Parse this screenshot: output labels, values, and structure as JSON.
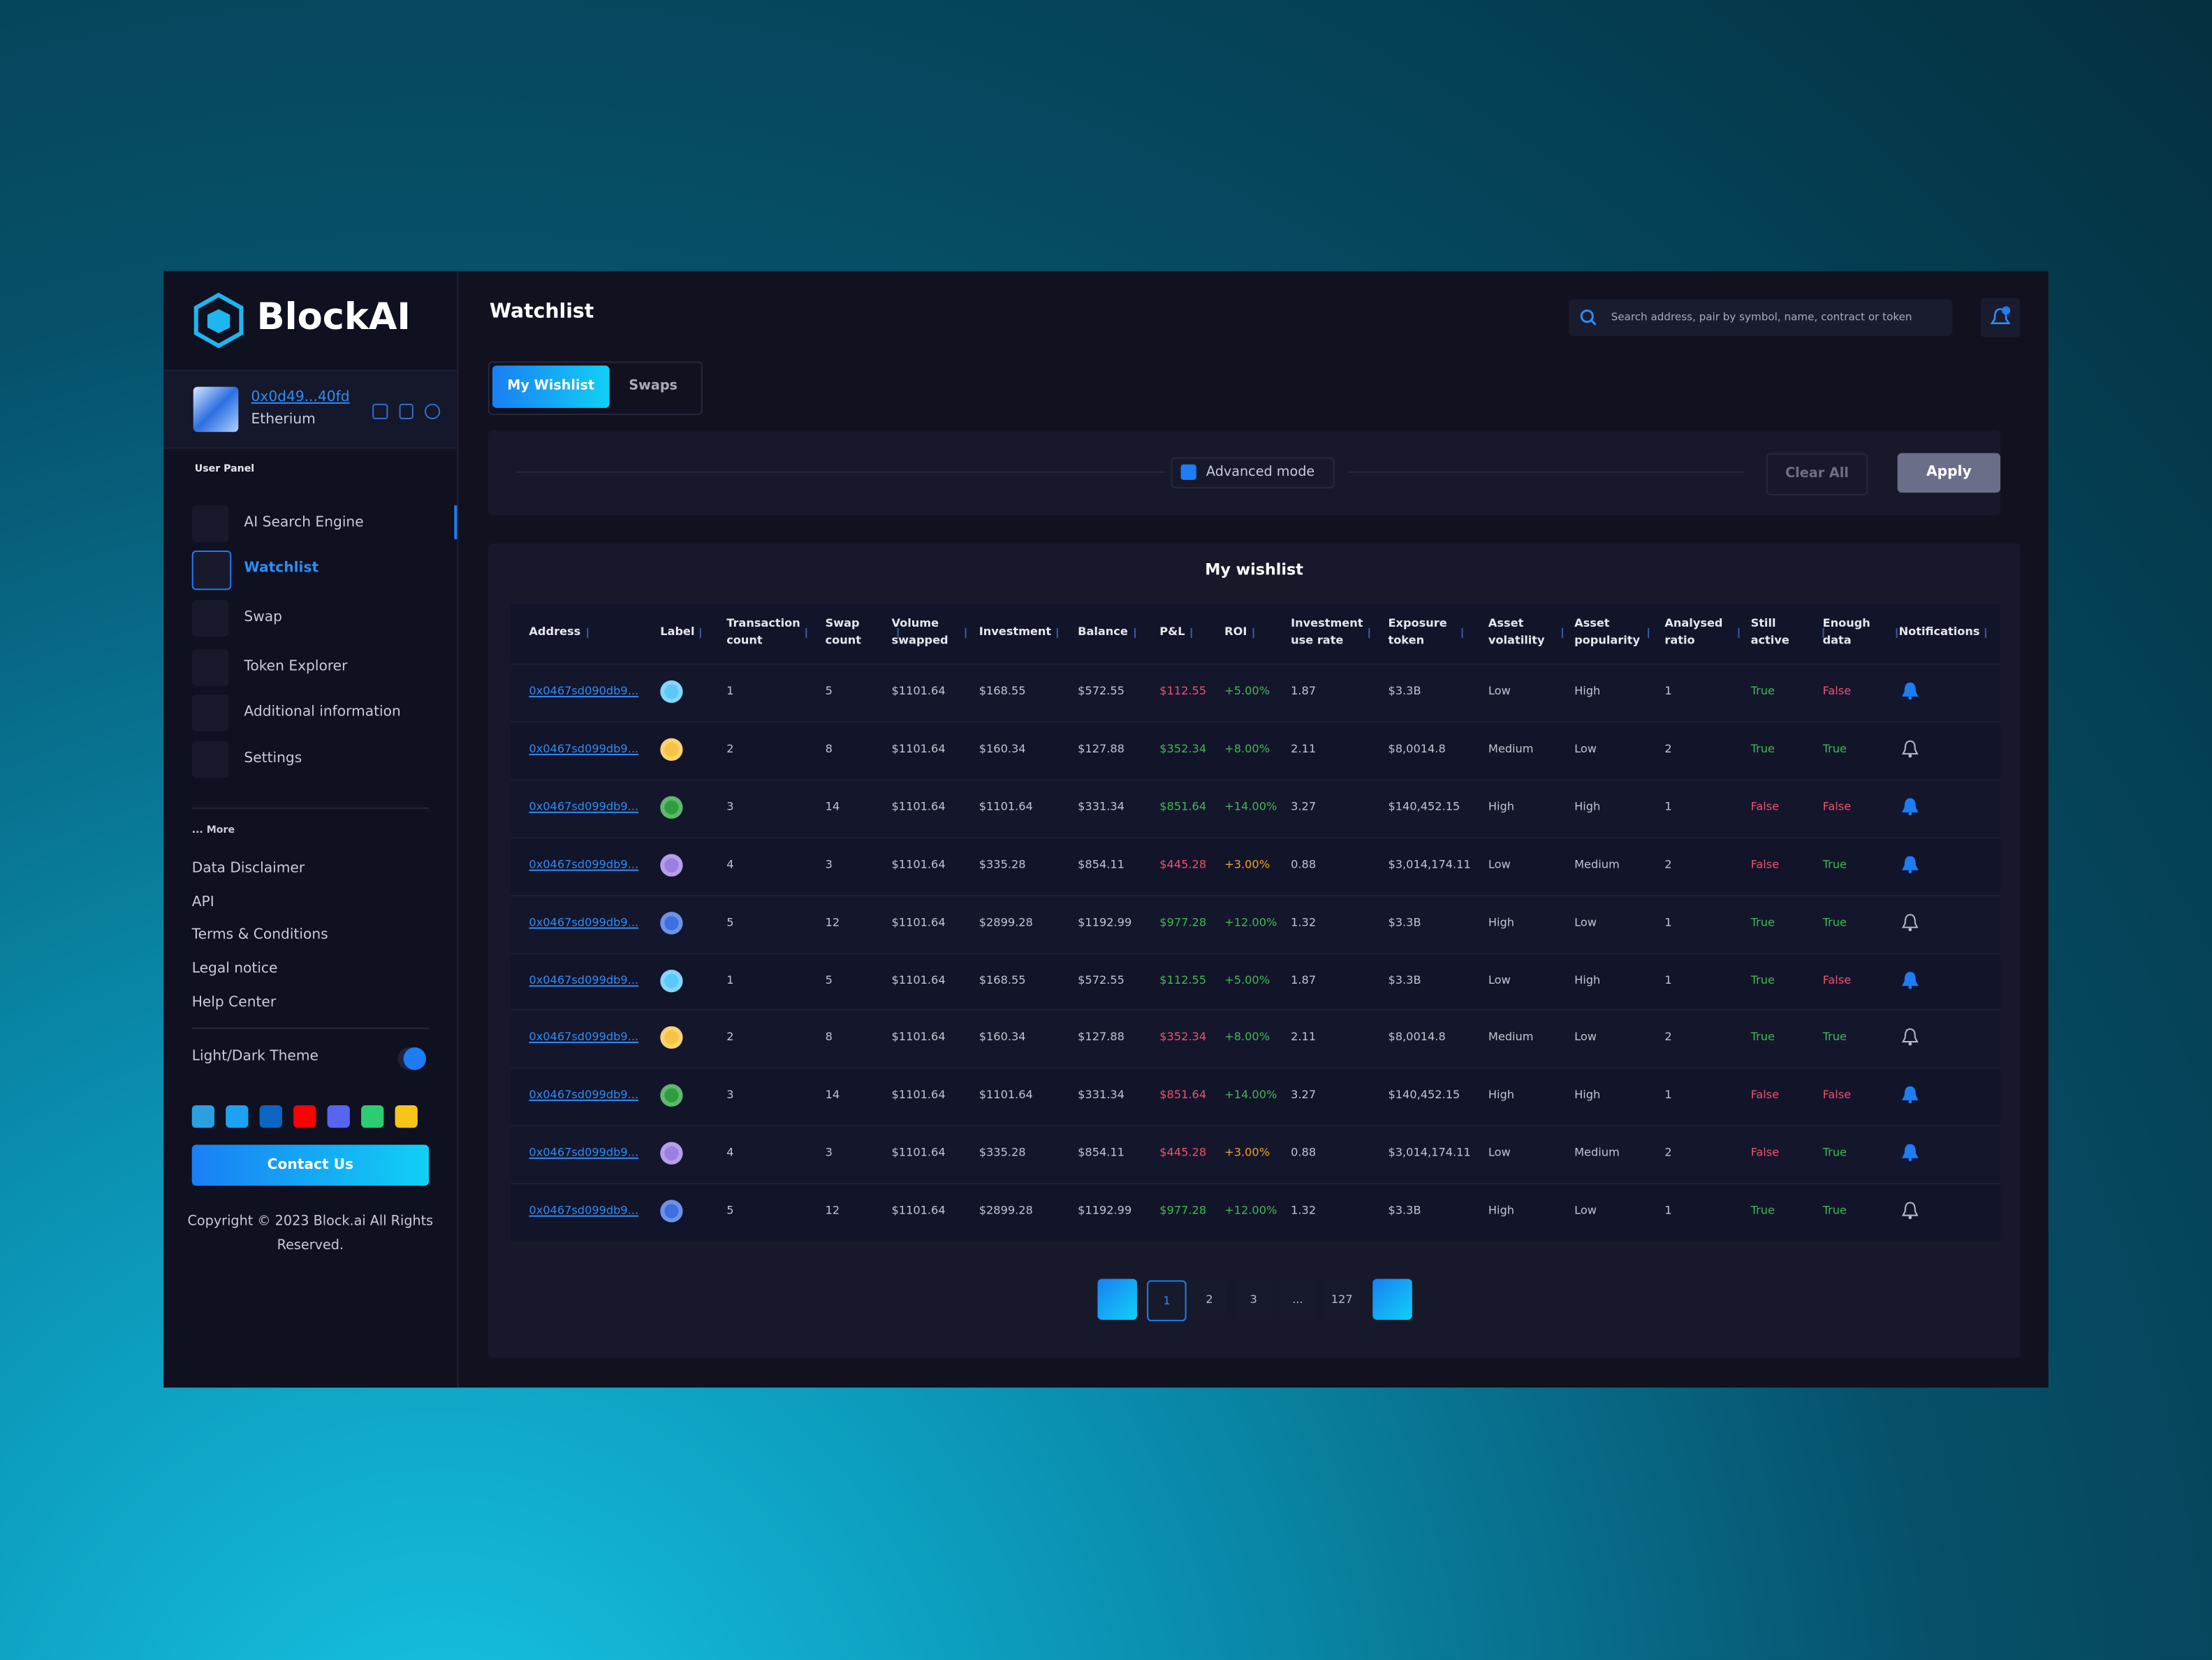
{
  "brand": "BlockAI",
  "wallet": {
    "address": "0x0d49...40fd",
    "network": "Etherium"
  },
  "sidebar": {
    "section": "User Panel",
    "nav": [
      "AI Search Engine",
      "Watchlist",
      "Swap",
      "Token Explorer",
      "Additional information",
      "Settings"
    ],
    "nav_active": 1,
    "more": "... More",
    "links": [
      "Data Disclaimer",
      "API",
      "Terms & Conditions",
      "Legal notice",
      "Help Center"
    ],
    "theme": "Light/Dark Theme",
    "contact": "Contact Us",
    "copyright": "Copyright © 2023 Block.ai All Rights Reserved."
  },
  "header": {
    "title": "Watchlist",
    "search_placeholder": "Search address, pair by symbol, name, contract or token"
  },
  "tabs": [
    "My Wishlist",
    "Swaps"
  ],
  "filters": {
    "mode": "Advanced mode",
    "clear": "Clear All",
    "apply": "Apply"
  },
  "status_colors": {
    "True": "#3fb950",
    "False": "#f0506e"
  },
  "table": {
    "title": "My wishlist",
    "columns": [
      "Address",
      "Label",
      "Transaction count",
      "Swap count",
      "Volume swapped",
      "Investment",
      "Balance",
      "P&L",
      "ROI",
      "Investment use rate",
      "Exposure token",
      "Asset volatility",
      "Asset popularity",
      "Analysed ratio",
      "Still active",
      "Enough data",
      "Notifications"
    ],
    "rows": [
      {
        "cells": [
          "0x0467sd090db9...",
          "1",
          "5",
          "$1101.64",
          "$168.55",
          "$572.55",
          "$112.55",
          "+5.00%",
          "1.87",
          "$3.3B",
          "Low",
          "High",
          "1",
          "True",
          "False"
        ],
        "label_color": "#5bc8f5",
        "pnl_color": "#f0506e",
        "roi_color": "#3fb950",
        "notify": true
      },
      {
        "cells": [
          "0x0467sd099db9...",
          "2",
          "8",
          "$1101.64",
          "$160.34",
          "$127.88",
          "$352.34",
          "+8.00%",
          "2.11",
          "$8,0014.8",
          "Medium",
          "Low",
          "2",
          "True",
          "True"
        ],
        "label_color": "#f5c542",
        "pnl_color": "#3fb950",
        "roi_color": "#3fb950",
        "notify": false
      },
      {
        "cells": [
          "0x0467sd099db9...",
          "3",
          "14",
          "$1101.64",
          "$1101.64",
          "$331.34",
          "$851.64",
          "+14.00%",
          "3.27",
          "$140,452.15",
          "High",
          "High",
          "1",
          "False",
          "False"
        ],
        "label_color": "#2e9e3e",
        "pnl_color": "#3fb950",
        "roi_color": "#3fb950",
        "notify": true
      },
      {
        "cells": [
          "0x0467sd099db9...",
          "4",
          "3",
          "$1101.64",
          "$335.28",
          "$854.11",
          "$445.28",
          "+3.00%",
          "0.88",
          "$3,014,174.11",
          "Low",
          "Medium",
          "2",
          "False",
          "True"
        ],
        "label_color": "#9b7fe0",
        "pnl_color": "#f0506e",
        "roi_color": "#f0a030",
        "notify": true
      },
      {
        "cells": [
          "0x0467sd099db9...",
          "5",
          "12",
          "$1101.64",
          "$2899.28",
          "$1192.99",
          "$977.28",
          "+12.00%",
          "1.32",
          "$3.3B",
          "High",
          "Low",
          "1",
          "True",
          "True"
        ],
        "label_color": "#3d6fe0",
        "pnl_color": "#3fb950",
        "roi_color": "#3fb950",
        "notify": false
      },
      {
        "cells": [
          "0x0467sd099db9...",
          "1",
          "5",
          "$1101.64",
          "$168.55",
          "$572.55",
          "$112.55",
          "+5.00%",
          "1.87",
          "$3.3B",
          "Low",
          "High",
          "1",
          "True",
          "False"
        ],
        "label_color": "#5bc8f5",
        "pnl_color": "#3fb950",
        "roi_color": "#3fb950",
        "notify": true
      },
      {
        "cells": [
          "0x0467sd099db9...",
          "2",
          "8",
          "$1101.64",
          "$160.34",
          "$127.88",
          "$352.34",
          "+8.00%",
          "2.11",
          "$8,0014.8",
          "Medium",
          "Low",
          "2",
          "True",
          "True"
        ],
        "label_color": "#f5c542",
        "pnl_color": "#f0506e",
        "roi_color": "#3fb950",
        "notify": false
      },
      {
        "cells": [
          "0x0467sd099db9...",
          "3",
          "14",
          "$1101.64",
          "$1101.64",
          "$331.34",
          "$851.64",
          "+14.00%",
          "3.27",
          "$140,452.15",
          "High",
          "High",
          "1",
          "False",
          "False"
        ],
        "label_color": "#2e9e3e",
        "pnl_color": "#f0506e",
        "roi_color": "#3fb950",
        "notify": true
      },
      {
        "cells": [
          "0x0467sd099db9...",
          "4",
          "3",
          "$1101.64",
          "$335.28",
          "$854.11",
          "$445.28",
          "+3.00%",
          "0.88",
          "$3,014,174.11",
          "Low",
          "Medium",
          "2",
          "False",
          "True"
        ],
        "label_color": "#9b7fe0",
        "pnl_color": "#f0506e",
        "roi_color": "#f0a030",
        "notify": true
      },
      {
        "cells": [
          "0x0467sd099db9...",
          "5",
          "12",
          "$1101.64",
          "$2899.28",
          "$1192.99",
          "$977.28",
          "+12.00%",
          "1.32",
          "$3.3B",
          "High",
          "Low",
          "1",
          "True",
          "True"
        ],
        "label_color": "#3d6fe0",
        "pnl_color": "#3fb950",
        "roi_color": "#3fb950",
        "notify": false
      }
    ]
  },
  "pagination": {
    "pages": [
      "1",
      "2",
      "3",
      "...",
      "127"
    ],
    "active": 0
  }
}
